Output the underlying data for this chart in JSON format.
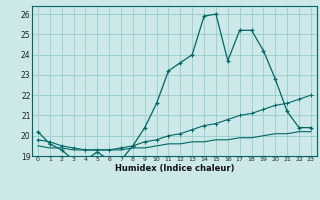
{
  "xlabel": "Humidex (Indice chaleur)",
  "bg_color": "#cce8e8",
  "grid_color": "#99cccc",
  "line_color": "#006666",
  "xlim": [
    -0.5,
    23.5
  ],
  "ylim": [
    19,
    26.4
  ],
  "xticks": [
    0,
    1,
    2,
    3,
    4,
    5,
    6,
    7,
    8,
    9,
    10,
    11,
    12,
    13,
    14,
    15,
    16,
    17,
    18,
    19,
    20,
    21,
    22,
    23
  ],
  "yticks": [
    19,
    20,
    21,
    22,
    23,
    24,
    25,
    26
  ],
  "series1_x": [
    0,
    1,
    2,
    3,
    4,
    5,
    6,
    7,
    8,
    9,
    10,
    11,
    12,
    13,
    14,
    15,
    16,
    17,
    18,
    19,
    20,
    21,
    22,
    23
  ],
  "series1_y": [
    20.2,
    19.6,
    19.3,
    18.8,
    18.8,
    19.2,
    18.8,
    18.8,
    19.5,
    20.4,
    21.6,
    23.2,
    23.6,
    24.0,
    25.9,
    26.0,
    23.7,
    25.2,
    25.2,
    24.2,
    22.8,
    21.2,
    20.4,
    20.4
  ],
  "series2_x": [
    0,
    1,
    2,
    3,
    4,
    5,
    6,
    7,
    8,
    9,
    10,
    11,
    12,
    13,
    14,
    15,
    16,
    17,
    18,
    19,
    20,
    21,
    22,
    23
  ],
  "series2_y": [
    19.8,
    19.7,
    19.5,
    19.4,
    19.3,
    19.3,
    19.3,
    19.4,
    19.5,
    19.7,
    19.8,
    20.0,
    20.1,
    20.3,
    20.5,
    20.6,
    20.8,
    21.0,
    21.1,
    21.3,
    21.5,
    21.6,
    21.8,
    22.0
  ],
  "series3_x": [
    0,
    1,
    2,
    3,
    4,
    5,
    6,
    7,
    8,
    9,
    10,
    11,
    12,
    13,
    14,
    15,
    16,
    17,
    18,
    19,
    20,
    21,
    22,
    23
  ],
  "series3_y": [
    19.5,
    19.4,
    19.4,
    19.3,
    19.3,
    19.3,
    19.3,
    19.3,
    19.4,
    19.4,
    19.5,
    19.6,
    19.6,
    19.7,
    19.7,
    19.8,
    19.8,
    19.9,
    19.9,
    20.0,
    20.1,
    20.1,
    20.2,
    20.2
  ]
}
